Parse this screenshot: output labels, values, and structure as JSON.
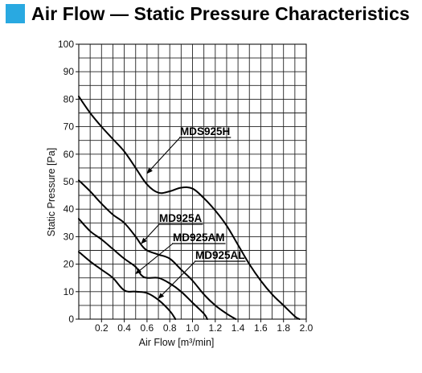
{
  "header": {
    "title": "Air Flow — Static Pressure Characteristics",
    "accent_color": "#29a9e1"
  },
  "chart_data": {
    "type": "line",
    "xlabel": "Air Flow [m³/min]",
    "ylabel": "Static Pressure [Pa]",
    "xlim": [
      0,
      2.0
    ],
    "ylim": [
      0,
      100
    ],
    "x_ticks": [
      "0.2",
      "0.4",
      "0.6",
      "0.8",
      "1.0",
      "1.2",
      "1.4",
      "1.6",
      "1.8",
      "2.0"
    ],
    "y_ticks": [
      "0",
      "10",
      "20",
      "30",
      "40",
      "50",
      "60",
      "70",
      "80",
      "90",
      "100"
    ],
    "grid": true,
    "series": [
      {
        "name": "MDS925H",
        "points": [
          [
            0.0,
            81
          ],
          [
            0.1,
            75
          ],
          [
            0.2,
            70
          ],
          [
            0.3,
            65.5
          ],
          [
            0.4,
            61
          ],
          [
            0.5,
            55
          ],
          [
            0.6,
            49
          ],
          [
            0.7,
            46
          ],
          [
            0.8,
            46.5
          ],
          [
            0.9,
            47.8
          ],
          [
            1.0,
            47.5
          ],
          [
            1.1,
            44
          ],
          [
            1.2,
            39.5
          ],
          [
            1.3,
            34
          ],
          [
            1.4,
            27
          ],
          [
            1.5,
            20
          ],
          [
            1.6,
            14
          ],
          [
            1.7,
            9
          ],
          [
            1.8,
            5
          ],
          [
            1.9,
            1
          ],
          [
            1.94,
            0
          ]
        ]
      },
      {
        "name": "MD925A",
        "points": [
          [
            0.0,
            50.5
          ],
          [
            0.1,
            46.5
          ],
          [
            0.2,
            42
          ],
          [
            0.3,
            38
          ],
          [
            0.4,
            35
          ],
          [
            0.5,
            30
          ],
          [
            0.55,
            27
          ],
          [
            0.6,
            25
          ],
          [
            0.7,
            23.5
          ],
          [
            0.8,
            22
          ],
          [
            0.9,
            18
          ],
          [
            1.0,
            14
          ],
          [
            1.1,
            9
          ],
          [
            1.2,
            5
          ],
          [
            1.3,
            2
          ],
          [
            1.38,
            0
          ]
        ]
      },
      {
        "name": "MD925AM",
        "points": [
          [
            0.0,
            36.5
          ],
          [
            0.1,
            32
          ],
          [
            0.2,
            29
          ],
          [
            0.3,
            25.5
          ],
          [
            0.4,
            22
          ],
          [
            0.5,
            19
          ],
          [
            0.55,
            16
          ],
          [
            0.6,
            15
          ],
          [
            0.7,
            15
          ],
          [
            0.8,
            13
          ],
          [
            0.9,
            10
          ],
          [
            1.0,
            6
          ],
          [
            1.1,
            2
          ],
          [
            1.13,
            0
          ]
        ]
      },
      {
        "name": "MD925AL",
        "points": [
          [
            0.0,
            24.5
          ],
          [
            0.1,
            21
          ],
          [
            0.2,
            18
          ],
          [
            0.3,
            15
          ],
          [
            0.4,
            10.5
          ],
          [
            0.5,
            10
          ],
          [
            0.6,
            9.5
          ],
          [
            0.7,
            7
          ],
          [
            0.8,
            3
          ],
          [
            0.85,
            0
          ]
        ]
      }
    ],
    "annotations": [
      {
        "text": "MDS925H",
        "series": "MDS925H",
        "arrow_to": [
          0.6,
          53
        ]
      },
      {
        "text": "MD925A",
        "series": "MD925A",
        "arrow_to": [
          0.55,
          27.5
        ]
      },
      {
        "text": "MD925AM",
        "series": "MD925AM",
        "arrow_to": [
          0.5,
          16.5
        ]
      },
      {
        "text": "MD925AL",
        "series": "MD925AL",
        "arrow_to": [
          0.7,
          7.5
        ]
      }
    ]
  }
}
